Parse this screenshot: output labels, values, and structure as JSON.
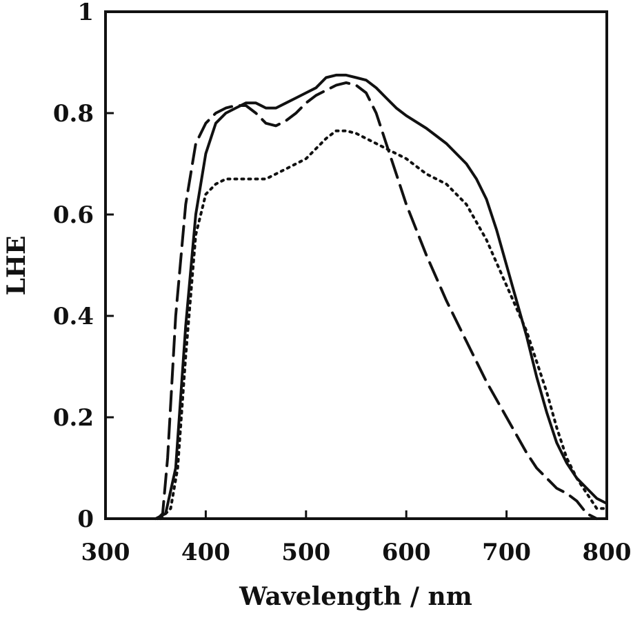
{
  "chart_data": {
    "type": "line",
    "title": "",
    "xlabel": "Wavelength / nm",
    "ylabel": "LHE",
    "xlim": [
      300,
      800
    ],
    "ylim": [
      0,
      1
    ],
    "xticks": [
      300,
      400,
      500,
      600,
      700,
      800
    ],
    "xtick_labels": [
      "300",
      "400",
      "500",
      "600",
      "700",
      "800"
    ],
    "yticks": [
      0,
      0.2,
      0.4,
      0.6,
      0.8,
      1
    ],
    "ytick_labels": [
      "0",
      "0.2",
      "0.4",
      "0.6",
      "0.8",
      "1"
    ],
    "grid": false,
    "legend": "none",
    "series": [
      {
        "style": "solid",
        "points": [
          [
            350,
            0
          ],
          [
            360,
            0.01
          ],
          [
            370,
            0.1
          ],
          [
            380,
            0.38
          ],
          [
            390,
            0.6
          ],
          [
            400,
            0.72
          ],
          [
            410,
            0.78
          ],
          [
            420,
            0.8
          ],
          [
            430,
            0.81
          ],
          [
            440,
            0.82
          ],
          [
            450,
            0.82
          ],
          [
            460,
            0.81
          ],
          [
            470,
            0.81
          ],
          [
            480,
            0.82
          ],
          [
            490,
            0.83
          ],
          [
            500,
            0.84
          ],
          [
            510,
            0.85
          ],
          [
            520,
            0.87
          ],
          [
            530,
            0.875
          ],
          [
            540,
            0.875
          ],
          [
            550,
            0.87
          ],
          [
            560,
            0.865
          ],
          [
            570,
            0.85
          ],
          [
            580,
            0.83
          ],
          [
            590,
            0.81
          ],
          [
            600,
            0.795
          ],
          [
            620,
            0.77
          ],
          [
            640,
            0.74
          ],
          [
            660,
            0.7
          ],
          [
            670,
            0.67
          ],
          [
            680,
            0.63
          ],
          [
            690,
            0.57
          ],
          [
            700,
            0.5
          ],
          [
            710,
            0.43
          ],
          [
            720,
            0.36
          ],
          [
            730,
            0.28
          ],
          [
            740,
            0.21
          ],
          [
            750,
            0.15
          ],
          [
            760,
            0.11
          ],
          [
            770,
            0.08
          ],
          [
            780,
            0.06
          ],
          [
            790,
            0.04
          ],
          [
            800,
            0.03
          ]
        ]
      },
      {
        "style": "dashed",
        "points": [
          [
            352,
            0
          ],
          [
            357,
            0.01
          ],
          [
            362,
            0.12
          ],
          [
            370,
            0.4
          ],
          [
            380,
            0.62
          ],
          [
            390,
            0.74
          ],
          [
            400,
            0.78
          ],
          [
            410,
            0.8
          ],
          [
            420,
            0.81
          ],
          [
            430,
            0.815
          ],
          [
            440,
            0.815
          ],
          [
            450,
            0.8
          ],
          [
            460,
            0.78
          ],
          [
            470,
            0.775
          ],
          [
            480,
            0.785
          ],
          [
            490,
            0.8
          ],
          [
            500,
            0.82
          ],
          [
            510,
            0.835
          ],
          [
            520,
            0.845
          ],
          [
            530,
            0.855
          ],
          [
            540,
            0.86
          ],
          [
            550,
            0.855
          ],
          [
            560,
            0.84
          ],
          [
            570,
            0.8
          ],
          [
            580,
            0.74
          ],
          [
            590,
            0.68
          ],
          [
            600,
            0.62
          ],
          [
            620,
            0.52
          ],
          [
            640,
            0.43
          ],
          [
            660,
            0.35
          ],
          [
            680,
            0.27
          ],
          [
            700,
            0.2
          ],
          [
            720,
            0.13
          ],
          [
            730,
            0.1
          ],
          [
            740,
            0.08
          ],
          [
            750,
            0.06
          ],
          [
            760,
            0.05
          ],
          [
            770,
            0.035
          ],
          [
            780,
            0.01
          ],
          [
            790,
            0
          ]
        ]
      },
      {
        "style": "dotted",
        "points": [
          [
            355,
            0
          ],
          [
            365,
            0.02
          ],
          [
            372,
            0.1
          ],
          [
            380,
            0.32
          ],
          [
            390,
            0.56
          ],
          [
            400,
            0.64
          ],
          [
            410,
            0.66
          ],
          [
            420,
            0.67
          ],
          [
            440,
            0.67
          ],
          [
            460,
            0.67
          ],
          [
            480,
            0.69
          ],
          [
            500,
            0.71
          ],
          [
            510,
            0.73
          ],
          [
            520,
            0.75
          ],
          [
            530,
            0.765
          ],
          [
            540,
            0.765
          ],
          [
            550,
            0.76
          ],
          [
            560,
            0.75
          ],
          [
            570,
            0.74
          ],
          [
            580,
            0.73
          ],
          [
            600,
            0.71
          ],
          [
            620,
            0.68
          ],
          [
            640,
            0.66
          ],
          [
            660,
            0.62
          ],
          [
            680,
            0.55
          ],
          [
            700,
            0.46
          ],
          [
            720,
            0.37
          ],
          [
            740,
            0.25
          ],
          [
            750,
            0.18
          ],
          [
            760,
            0.12
          ],
          [
            770,
            0.08
          ],
          [
            780,
            0.05
          ],
          [
            790,
            0.02
          ],
          [
            800,
            0.02
          ]
        ]
      }
    ]
  }
}
